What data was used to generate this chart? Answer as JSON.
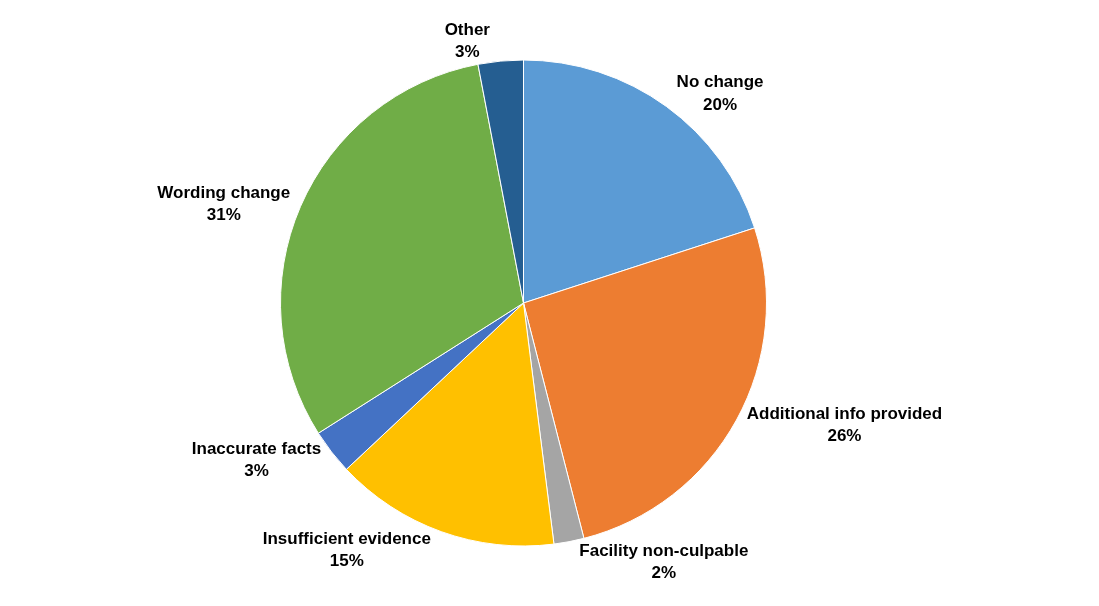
{
  "chart_data": {
    "type": "pie",
    "categories": [
      "No change",
      "Additional info provided",
      "Facility non-culpable",
      "Insufficient evidence",
      "Inaccurate facts",
      "Wording change",
      "Other"
    ],
    "values": [
      20,
      26,
      2,
      15,
      3,
      31,
      3
    ],
    "value_labels": [
      "20%",
      "26%",
      "2%",
      "15%",
      "3%",
      "31%",
      "3%"
    ],
    "colors": [
      "#5b9bd5",
      "#ed7d31",
      "#a5a5a5",
      "#ffc000",
      "#4472c4",
      "#70ad47",
      "#255e91"
    ],
    "legend": false
  }
}
